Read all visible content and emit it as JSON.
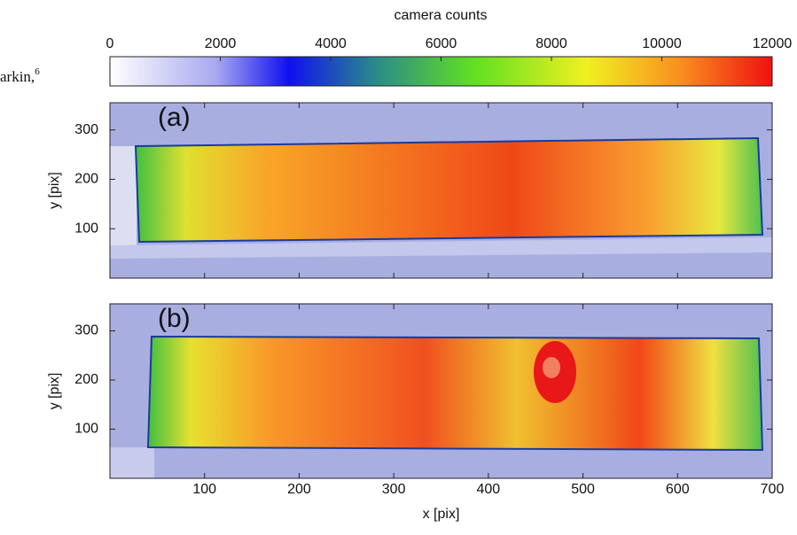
{
  "caption_fragment": {
    "text": "arkin,",
    "sup": "6"
  },
  "chart_data": {
    "type": "heatmap",
    "colorbar": {
      "label": "camera counts",
      "lim": [
        0,
        12000
      ],
      "ticks": [
        0,
        2000,
        4000,
        6000,
        8000,
        10000,
        12000
      ]
    },
    "xlabel": "x [pix]",
    "xlim": [
      0,
      700
    ],
    "xticks": [
      100,
      200,
      300,
      400,
      500,
      600,
      700
    ],
    "panels": [
      {
        "label": "(a)",
        "ylabel": "y [pix]",
        "ylim": [
          0,
          355
        ],
        "yticks": [
          100,
          200,
          300
        ]
      },
      {
        "label": "(b)",
        "ylabel": "y [pix]",
        "ylim": [
          0,
          355
        ],
        "yticks": [
          100,
          200,
          300
        ]
      }
    ]
  }
}
